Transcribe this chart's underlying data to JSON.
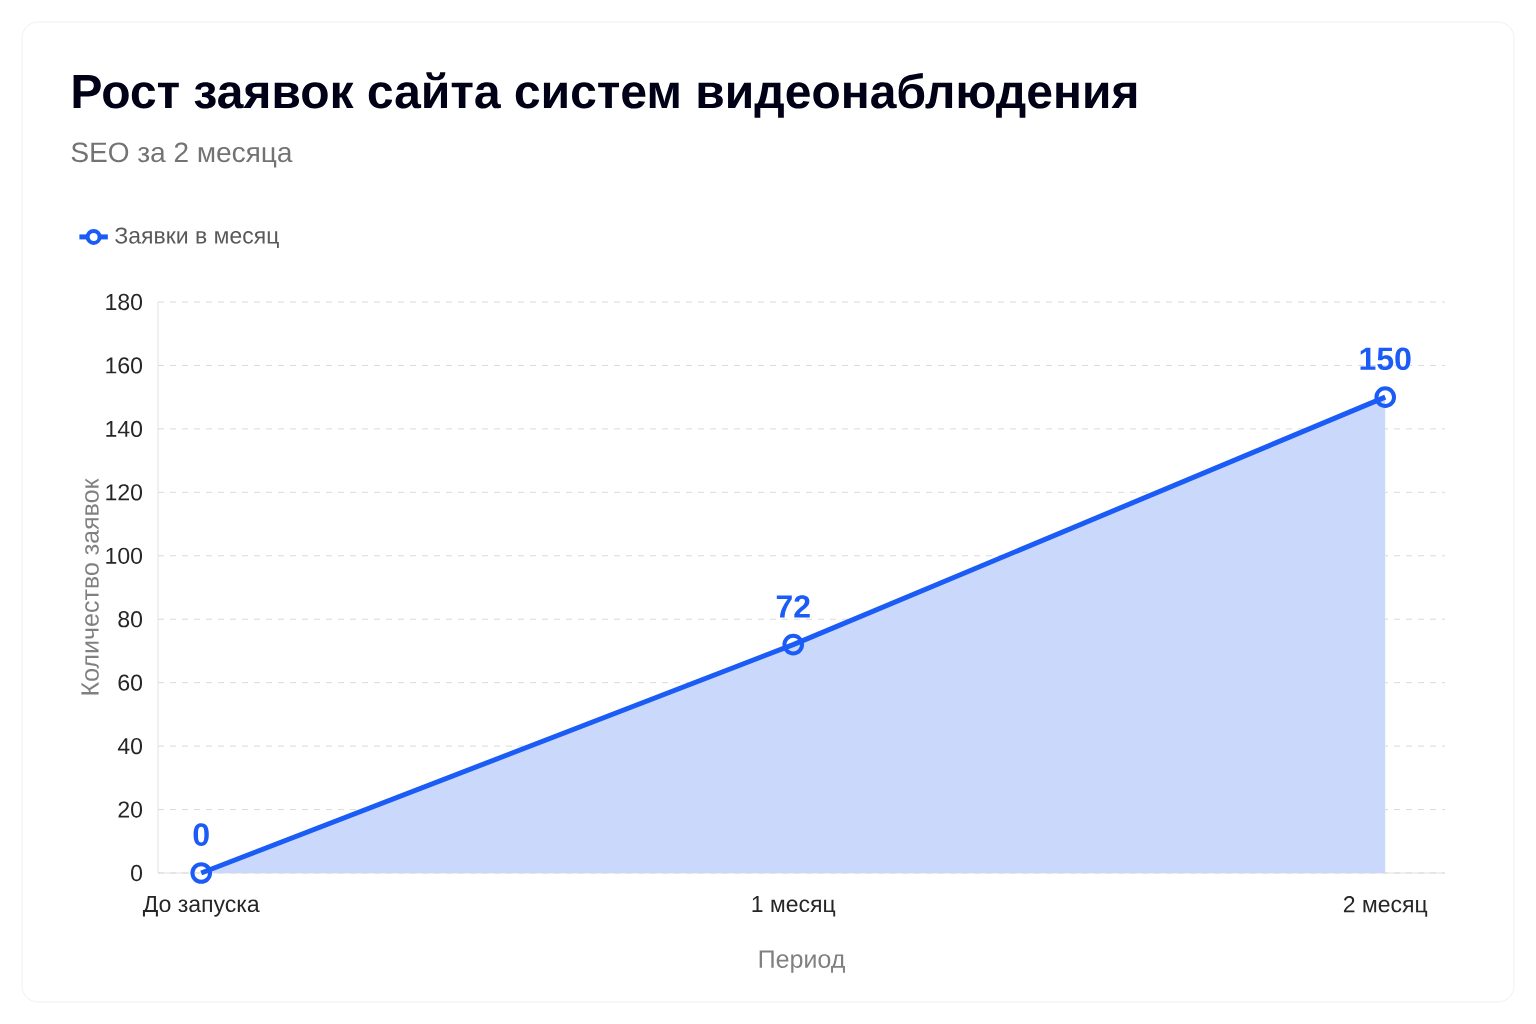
{
  "chart_data": {
    "type": "area",
    "title": "Рост заявок сайта систем видеонаблюдения",
    "subtitle": "SEO за 2 месяца",
    "xlabel": "Период",
    "ylabel": "Количество заявок",
    "categories": [
      "До запуска",
      "1 месяц",
      "2 месяц"
    ],
    "series": [
      {
        "name": "Заявки в месяц",
        "color": "#1a5cf5",
        "values": [
          0,
          72,
          150
        ]
      }
    ],
    "ylim": [
      0,
      180
    ],
    "yticks": [
      0,
      20,
      40,
      60,
      80,
      100,
      120,
      140,
      160,
      180
    ],
    "grid": "y",
    "legend": "top left",
    "marker": "circle",
    "data_labels": true
  }
}
